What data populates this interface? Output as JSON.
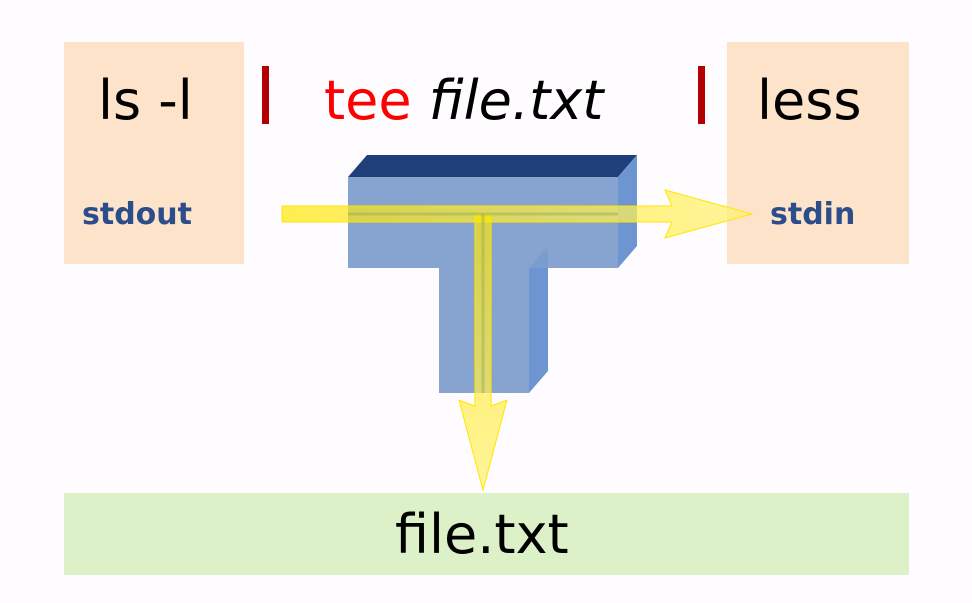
{
  "colors": {
    "box_fill": "#fde3c9",
    "file_box_fill": "#dcf1c7",
    "tee_word": "#ff0000",
    "pipe": "#b30000",
    "stream_text": "#2b4e8b",
    "tee_front": "#7d9ccd",
    "tee_top": "#1f3f7a",
    "tee_side": "#6d95d2",
    "arrow": "#ffe600"
  },
  "left": {
    "command": "ls -l",
    "stream": "stdout"
  },
  "middle": {
    "command": "tee",
    "argument": "file.txt"
  },
  "right": {
    "command": "less",
    "stream": "stdin"
  },
  "pipe_symbol": "|",
  "output": {
    "file": "file.txt"
  },
  "icons": {
    "tee_shape": "tee-pipe-icon"
  }
}
